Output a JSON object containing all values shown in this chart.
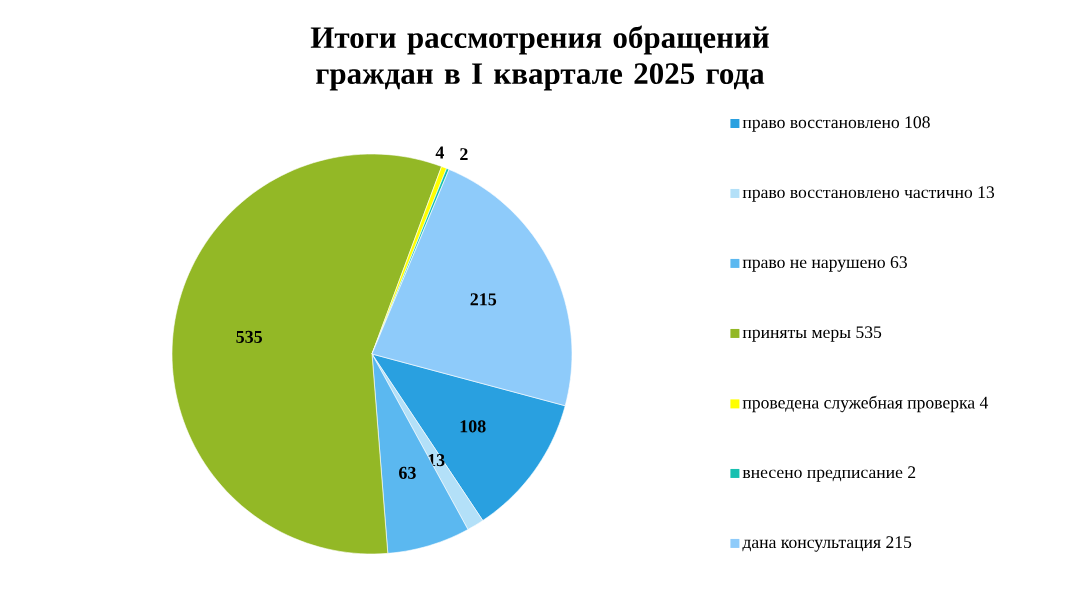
{
  "chart_data": {
    "type": "pie",
    "title": "Итоги рассмотрения обращений граждан в I квартале 2025 года",
    "categories": [
      "право восстановлено 108",
      "право восстановлено частично 13",
      "право не нарушено 63",
      "приняты меры 535",
      "проведена служебная проверка 4",
      "внесено предписание 2",
      "дана консультация 215"
    ],
    "values": [
      108,
      13,
      63,
      535,
      4,
      2,
      215
    ],
    "colors": [
      "#29a0e0",
      "#b3e0f8",
      "#5bb8f0",
      "#93b826",
      "#ffff00",
      "#17c0b0",
      "#8ecbfa"
    ],
    "data_labels": true,
    "legend": "right"
  }
}
